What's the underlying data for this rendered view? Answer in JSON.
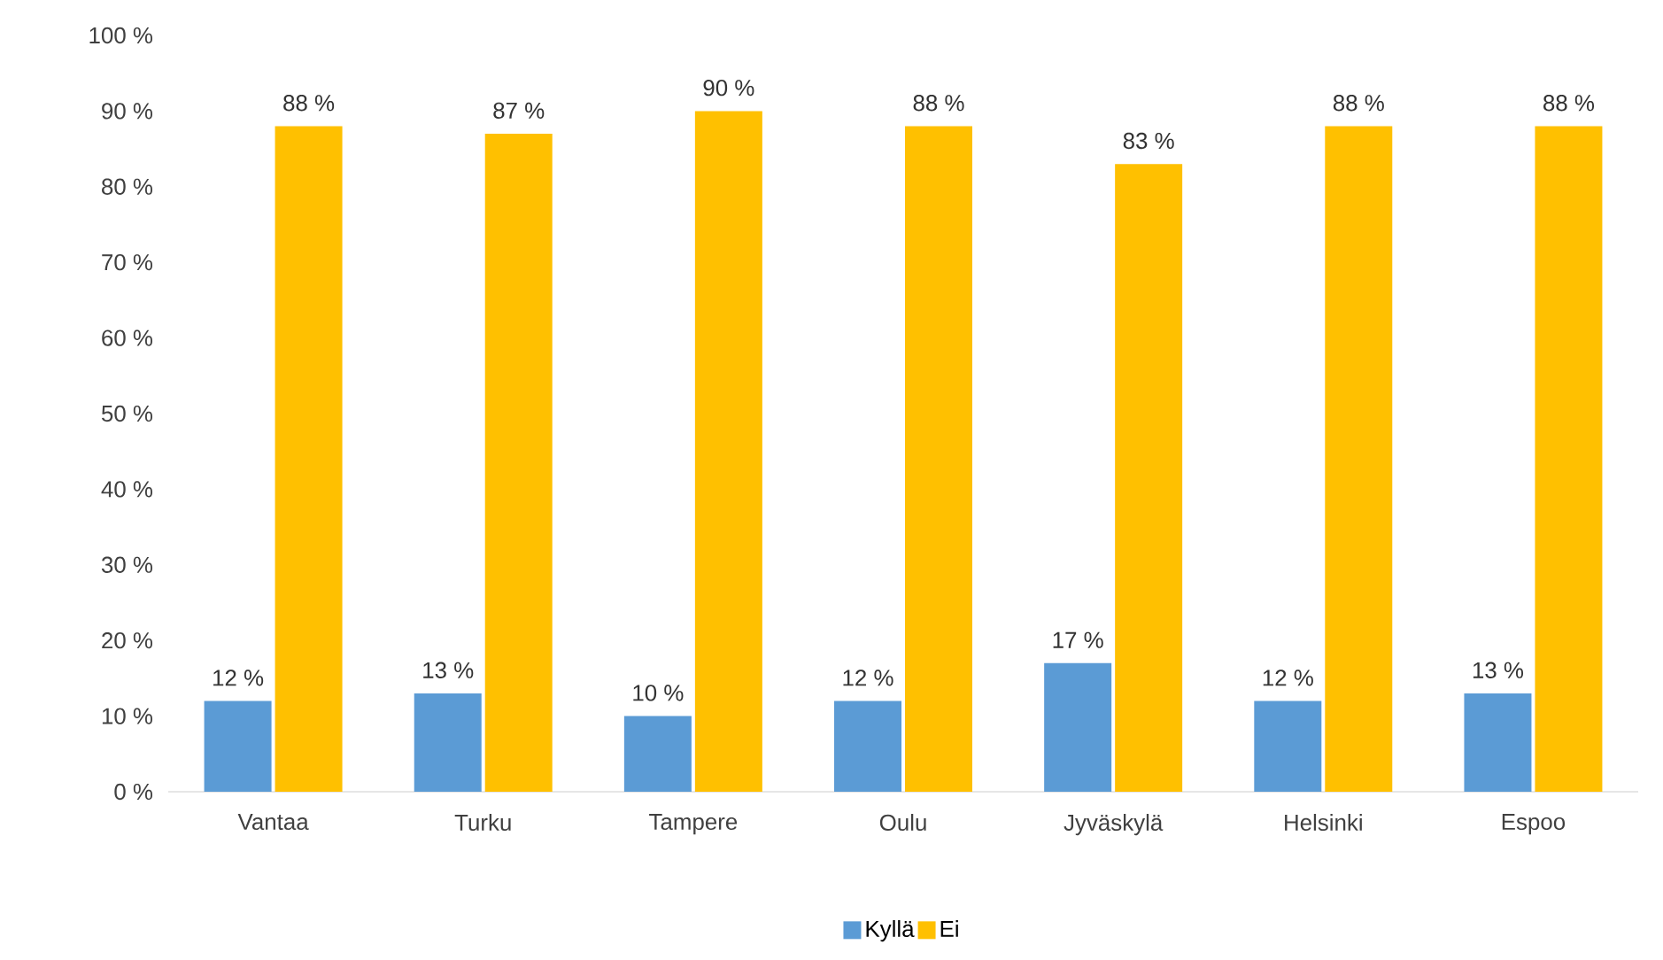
{
  "chart_data": {
    "type": "bar",
    "categories": [
      "Vantaa",
      "Turku",
      "Tampere",
      "Oulu",
      "Jyväskylä",
      "Helsinki",
      "Espoo"
    ],
    "series": [
      {
        "name": "Kyllä",
        "color": "#5b9bd5",
        "values": [
          12,
          13,
          10,
          12,
          17,
          12,
          13
        ],
        "value_labels": [
          "12 %",
          "13 %",
          "10 %",
          "12 %",
          "17 %",
          "12 %",
          "13 %"
        ]
      },
      {
        "name": "Ei",
        "color": "#ffc000",
        "values": [
          88,
          87,
          90,
          88,
          83,
          88,
          88
        ],
        "value_labels": [
          "88 %",
          "87 %",
          "90 %",
          "88 %",
          "83 %",
          "88 %",
          "88 %"
        ]
      }
    ],
    "ylim": [
      0,
      100
    ],
    "yticks": [
      {
        "value": 0,
        "label": "0 %"
      },
      {
        "value": 10,
        "label": "10 %"
      },
      {
        "value": 20,
        "label": "20 %"
      },
      {
        "value": 30,
        "label": "30 %"
      },
      {
        "value": 40,
        "label": "40 %"
      },
      {
        "value": 50,
        "label": "50 %"
      },
      {
        "value": 60,
        "label": "60 %"
      },
      {
        "value": 70,
        "label": "70 %"
      },
      {
        "value": 80,
        "label": "80 %"
      },
      {
        "value": 90,
        "label": "90 %"
      },
      {
        "value": 100,
        "label": "100 %"
      }
    ],
    "legend": "bottom",
    "grid": false
  }
}
